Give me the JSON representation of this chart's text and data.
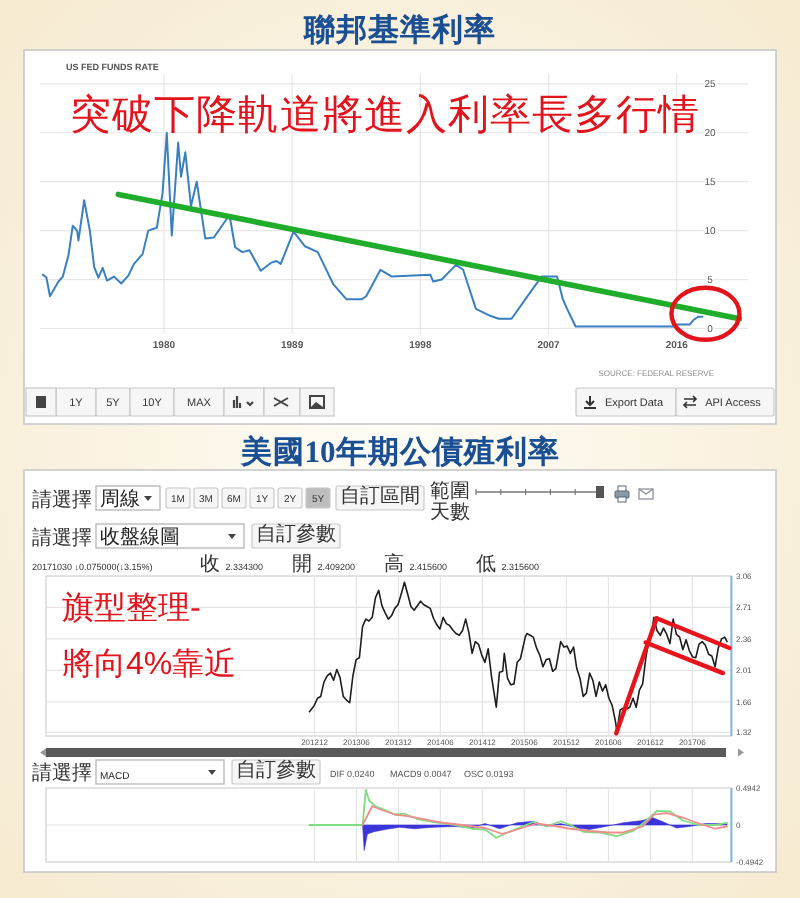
{
  "chart_data": [
    {
      "type": "line",
      "title": "聯邦基準利率",
      "subtitle": "US FED FUNDS RATE",
      "x": [
        1971.5,
        1971.75,
        1972.0,
        1972.2,
        1972.6,
        1972.9,
        1973.3,
        1973.6,
        1973.9,
        1974.0,
        1974.4,
        1974.8,
        1975.1,
        1975.4,
        1975.7,
        1976.0,
        1976.5,
        1977.0,
        1977.5,
        1977.9,
        1978.5,
        1978.9,
        1979.5,
        1979.9,
        1980.2,
        1980.55,
        1981.0,
        1981.2,
        1981.5,
        1981.9,
        1982.3,
        1982.9,
        1983.5,
        1984.6,
        1985.0,
        1985.5,
        1986.0,
        1986.8,
        1987.5,
        1987.9,
        1988.2,
        1989.1,
        1989.9,
        1990.8,
        1991.9,
        1992.8,
        1993.9,
        1994.2,
        1995.2,
        1996.0,
        1998.7,
        1998.9,
        1999.5,
        2000.5,
        2001.0,
        2001.9,
        2002.9,
        2003.5,
        2004.4,
        2006.5,
        2007.6,
        2008.0,
        2008.3,
        2008.9,
        2015.9,
        2016.0,
        2016.9,
        2017.2,
        2017.5,
        2017.8
      ],
      "series": [
        {
          "color": "#3a7fc1",
          "values": [
            5.5,
            5.2,
            3.3,
            3.8,
            4.8,
            5.3,
            7.5,
            10.5,
            10.0,
            9.0,
            13.1,
            10.0,
            6.3,
            5.2,
            6.2,
            4.9,
            5.3,
            4.6,
            5.4,
            6.6,
            7.6,
            10.0,
            10.3,
            13.8,
            20.0,
            9.5,
            19.0,
            15.5,
            18.0,
            12.5,
            15.0,
            9.2,
            9.3,
            11.6,
            8.3,
            7.8,
            8.0,
            5.9,
            6.7,
            6.9,
            6.6,
            9.9,
            8.4,
            7.8,
            4.5,
            3.0,
            3.0,
            3.3,
            6.0,
            5.3,
            5.5,
            4.8,
            5.0,
            6.5,
            6.0,
            2.0,
            1.3,
            1.0,
            1.0,
            5.3,
            5.3,
            3.0,
            2.0,
            0.2,
            0.2,
            0.4,
            0.4,
            0.9,
            1.2,
            1.2
          ]
        },
        {
          "type": "line",
          "color": "#1fad2b",
          "x": [
            1976.8,
            2020.4
          ],
          "values": [
            13.7,
            1.0
          ]
        }
      ],
      "xlim": [
        1971.3,
        2021.0
      ],
      "xticks": [
        1980,
        1989,
        1998,
        2007,
        2016
      ],
      "ylim": [
        -0.5,
        26
      ],
      "yticks": [
        0,
        5,
        10,
        15,
        20,
        25
      ],
      "grid": true,
      "annotations": [
        "突破下降軌道將進入利率長多行情",
        "SOURCE: FEDERAL RESERVE",
        "1Y",
        "5Y",
        "10Y",
        "MAX",
        "Export Data",
        "API Access"
      ]
    },
    {
      "type": "line",
      "title": "美國10年期公債殖利率",
      "x": [
        "2012-11-09",
        "2012-11-30",
        "2012-12-14",
        "2012-12-28",
        "2013-01-11",
        "2013-01-25",
        "2013-02-08",
        "2013-02-22",
        "2013-03-08",
        "2013-03-22",
        "2013-04-05",
        "2013-04-19",
        "2013-05-03",
        "2013-05-17",
        "2013-05-31",
        "2013-06-14",
        "2013-06-28",
        "2013-07-12",
        "2013-07-26",
        "2013-08-09",
        "2013-08-23",
        "2013-09-06",
        "2013-09-20",
        "2013-10-04",
        "2013-10-18",
        "2013-11-01",
        "2013-11-15",
        "2013-11-29",
        "2013-12-13",
        "2013-12-27",
        "2014-01-10",
        "2014-01-24",
        "2014-02-07",
        "2014-02-21",
        "2014-03-07",
        "2014-03-21",
        "2014-04-04",
        "2014-04-18",
        "2014-05-02",
        "2014-05-16",
        "2014-05-30",
        "2014-06-13",
        "2014-06-27",
        "2014-07-11",
        "2014-07-25",
        "2014-08-08",
        "2014-08-22",
        "2014-09-05",
        "2014-09-19",
        "2014-10-03",
        "2014-10-17",
        "2014-10-31",
        "2014-11-14",
        "2014-11-28",
        "2014-12-12",
        "2014-12-26",
        "2015-01-09",
        "2015-01-30",
        "2015-02-13",
        "2015-02-27",
        "2015-03-06",
        "2015-03-20",
        "2015-04-03",
        "2015-04-17",
        "2015-05-01",
        "2015-05-15",
        "2015-06-05",
        "2015-06-12",
        "2015-06-26",
        "2015-07-10",
        "2015-07-24",
        "2015-08-07",
        "2015-08-21",
        "2015-09-04",
        "2015-09-18",
        "2015-10-02",
        "2015-10-16",
        "2015-11-06",
        "2015-11-20",
        "2015-12-04",
        "2015-12-18",
        "2016-01-01",
        "2016-01-15",
        "2016-01-29",
        "2016-02-12",
        "2016-02-26",
        "2016-03-11",
        "2016-03-25",
        "2016-04-08",
        "2016-04-22",
        "2016-05-06",
        "2016-05-20",
        "2016-06-03",
        "2016-06-17",
        "2016-07-01",
        "2016-07-08",
        "2016-07-22",
        "2016-08-05",
        "2016-08-19",
        "2016-09-02",
        "2016-09-16",
        "2016-09-30",
        "2016-10-14",
        "2016-10-28",
        "2016-11-11",
        "2016-11-25",
        "2016-12-09",
        "2016-12-16",
        "2016-12-30",
        "2017-01-13",
        "2017-01-27",
        "2017-02-10",
        "2017-02-24",
        "2017-03-10",
        "2017-03-24",
        "2017-04-07",
        "2017-04-21",
        "2017-05-05",
        "2017-05-19",
        "2017-06-02",
        "2017-06-16",
        "2017-06-30",
        "2017-07-14",
        "2017-07-28",
        "2017-08-11",
        "2017-08-25",
        "2017-09-08",
        "2017-09-22",
        "2017-10-06",
        "2017-10-20",
        "2017-10-30"
      ],
      "series": [
        {
          "color": "#1e1e1e",
          "values": [
            1.55,
            1.62,
            1.7,
            1.72,
            1.88,
            1.95,
            1.98,
            1.9,
            2.02,
            1.93,
            1.72,
            1.68,
            1.65,
            1.95,
            2.13,
            2.15,
            2.5,
            2.58,
            2.56,
            2.6,
            2.82,
            2.9,
            2.73,
            2.65,
            2.58,
            2.62,
            2.7,
            2.74,
            2.86,
            2.99,
            2.86,
            2.72,
            2.68,
            2.73,
            2.78,
            2.74,
            2.72,
            2.7,
            2.59,
            2.52,
            2.47,
            2.6,
            2.53,
            2.51,
            2.46,
            2.42,
            2.4,
            2.45,
            2.58,
            2.43,
            2.2,
            2.33,
            2.3,
            2.18,
            2.1,
            2.25,
            1.95,
            1.6,
            1.99,
            2.0,
            2.2,
            1.92,
            1.85,
            1.86,
            2.1,
            2.14,
            2.38,
            2.42,
            2.4,
            2.38,
            2.26,
            2.18,
            2.05,
            2.13,
            2.14,
            2.0,
            2.03,
            2.33,
            2.27,
            2.28,
            2.2,
            2.27,
            2.03,
            1.92,
            1.72,
            1.76,
            1.98,
            1.9,
            1.72,
            1.88,
            1.78,
            1.85,
            1.7,
            1.62,
            1.45,
            1.33,
            1.57,
            1.59,
            1.58,
            1.6,
            1.7,
            1.6,
            1.79,
            1.86,
            2.15,
            2.36,
            2.47,
            2.6,
            2.45,
            2.4,
            2.48,
            2.41,
            2.31,
            2.58,
            2.41,
            2.38,
            2.24,
            2.35,
            2.23,
            2.16,
            2.15,
            2.3,
            2.33,
            2.29,
            2.19,
            2.17,
            2.05,
            2.26,
            2.36,
            2.38,
            2.33
          ]
        },
        {
          "type": "line",
          "color": "#e8141c",
          "x": [
            "2016-07-05",
            "2016-12-28"
          ],
          "values": [
            1.31,
            2.59
          ]
        },
        {
          "type": "line",
          "color": "#e8141c",
          "x": [
            "2016-12-28",
            "2017-11-10"
          ],
          "values": [
            2.59,
            2.26
          ]
        },
        {
          "type": "line",
          "color": "#e8141c",
          "x": [
            "2016-11-10",
            "2017-10-12"
          ],
          "values": [
            2.32,
            1.98
          ]
        }
      ],
      "xlim": [
        "2009-09-20",
        "2017-11-18"
      ],
      "xticks": [
        {
          "value": "2012-12-01",
          "label": "201212"
        },
        {
          "value": "2013-06-01",
          "label": "201306"
        },
        {
          "value": "2013-12-01",
          "label": "201312"
        },
        {
          "value": "2014-06-01",
          "label": "201406"
        },
        {
          "value": "2014-12-01",
          "label": "201412"
        },
        {
          "value": "2015-06-01",
          "label": "201506"
        },
        {
          "value": "2015-12-01",
          "label": "201512"
        },
        {
          "value": "2016-06-01",
          "label": "201606"
        },
        {
          "value": "2016-12-01",
          "label": "201612"
        },
        {
          "value": "2017-06-01",
          "label": "201706"
        }
      ],
      "ylim": [
        1.28,
        3.06
      ],
      "yticks": [
        3.06,
        2.71,
        2.36,
        2.01,
        1.66,
        1.32
      ],
      "grid": true,
      "annotations": [
        "旗型整理-",
        "將向4%靠近",
        "請選擇",
        "周線",
        "1M",
        "3M",
        "6M",
        "1Y",
        "2Y",
        "5Y",
        "自訂區間",
        "範圍",
        "天數",
        "請選擇",
        "收盤線圖",
        "自訂參數",
        "20171030 ↓0.075000(↓3.15%)",
        "收 2.334300",
        "開 2.409200",
        "高 2.415600",
        "低 2.315600"
      ]
    },
    {
      "type": "line",
      "x": [
        "2012-11-09",
        "2013-06-28",
        "2013-07-12",
        "2013-07-26",
        "2013-08-23",
        "2013-10-04",
        "2013-11-15",
        "2013-12-27",
        "2014-02-21",
        "2014-05-02",
        "2014-08-08",
        "2014-10-17",
        "2014-12-12",
        "2015-01-30",
        "2015-03-20",
        "2015-05-15",
        "2015-07-10",
        "2015-09-04",
        "2015-11-06",
        "2015-12-18",
        "2016-02-12",
        "2016-04-22",
        "2016-07-08",
        "2016-09-16",
        "2016-11-11",
        "2016-12-30",
        "2017-02-24",
        "2017-04-21",
        "2017-06-30",
        "2017-09-08",
        "2017-10-30"
      ],
      "series": [
        {
          "color": "#7fdc7f",
          "values": [
            0,
            0,
            0.47,
            0.33,
            0.25,
            0.2,
            0.14,
            0.15,
            0.08,
            0.04,
            0.0,
            -0.05,
            -0.06,
            -0.17,
            -0.1,
            -0.03,
            0.04,
            -0.02,
            0.05,
            0.0,
            -0.09,
            -0.1,
            -0.15,
            -0.08,
            0.05,
            0.19,
            0.18,
            0.06,
            0.0,
            0.0,
            0.03
          ]
        },
        {
          "color": "#f08c8c",
          "x": [
            "2013-06-28",
            "2013-08-09",
            "2013-09-20",
            "2013-11-15",
            "2014-01-10",
            "2014-03-21",
            "2014-06-13",
            "2014-09-05",
            "2014-12-12",
            "2015-02-27",
            "2015-05-01",
            "2015-07-24",
            "2015-10-02",
            "2015-12-18",
            "2016-03-11",
            "2016-06-03",
            "2016-08-05",
            "2016-10-28",
            "2016-12-16",
            "2017-02-10",
            "2017-04-21",
            "2017-06-30",
            "2017-09-08",
            "2017-10-30"
          ],
          "values": [
            0,
            0.25,
            0.2,
            0.14,
            0.12,
            0.08,
            0.03,
            0.0,
            -0.04,
            -0.12,
            -0.06,
            0.02,
            -0.01,
            -0.05,
            -0.08,
            -0.1,
            -0.1,
            -0.02,
            0.14,
            0.16,
            0.1,
            0.02,
            -0.05,
            -0.02
          ]
        },
        {
          "type": "area",
          "color": "#3b35d9",
          "x": [
            "2012-11-09",
            "2013-06-28",
            "2013-07-05",
            "2013-07-19",
            "2013-08-16",
            "2013-10-04",
            "2013-12-06",
            "2014-02-07",
            "2014-05-02",
            "2014-08-08",
            "2014-10-17",
            "2014-12-12",
            "2015-02-13",
            "2015-05-01",
            "2015-07-10",
            "2015-09-04",
            "2015-11-06",
            "2016-01-15",
            "2016-03-11",
            "2016-05-20",
            "2016-08-05",
            "2016-10-28",
            "2016-12-09",
            "2017-01-27",
            "2017-03-24",
            "2017-05-19",
            "2017-07-28",
            "2017-10-30"
          ],
          "values": [
            0,
            0,
            -0.34,
            -0.12,
            -0.09,
            -0.06,
            -0.03,
            -0.05,
            -0.03,
            -0.02,
            -0.04,
            0.02,
            -0.05,
            0.03,
            0.05,
            -0.02,
            0.02,
            -0.04,
            -0.06,
            -0.02,
            0.03,
            0.06,
            0.1,
            0.04,
            -0.04,
            -0.02,
            0.02,
            0.02
          ]
        }
      ],
      "xlim": [
        "2009-09-20",
        "2017-11-18"
      ],
      "xticks": [
        {
          "value": "2012-12-01",
          "label": null
        },
        {
          "value": "2013-06-01",
          "label": null
        },
        {
          "value": "2013-12-01",
          "label": null
        },
        {
          "value": "2014-06-01",
          "label": null
        },
        {
          "value": "2014-12-01",
          "label": null
        },
        {
          "value": "2015-06-01",
          "label": null
        },
        {
          "value": "2015-12-01",
          "label": null
        },
        {
          "value": "2016-06-01",
          "label": null
        },
        {
          "value": "2016-12-01",
          "label": null
        },
        {
          "value": "2017-06-01",
          "label": null
        }
      ],
      "ylim": [
        -0.4942,
        0.4942
      ],
      "yticks": [
        0.4942,
        0,
        -0.4942
      ],
      "grid": true,
      "tick_labels": "y",
      "annotations": [
        "請選擇",
        "MACD",
        "自訂參數",
        "DIF 0.0240",
        "MACD9 0.0047",
        "OSC 0.0193"
      ]
    }
  ]
}
